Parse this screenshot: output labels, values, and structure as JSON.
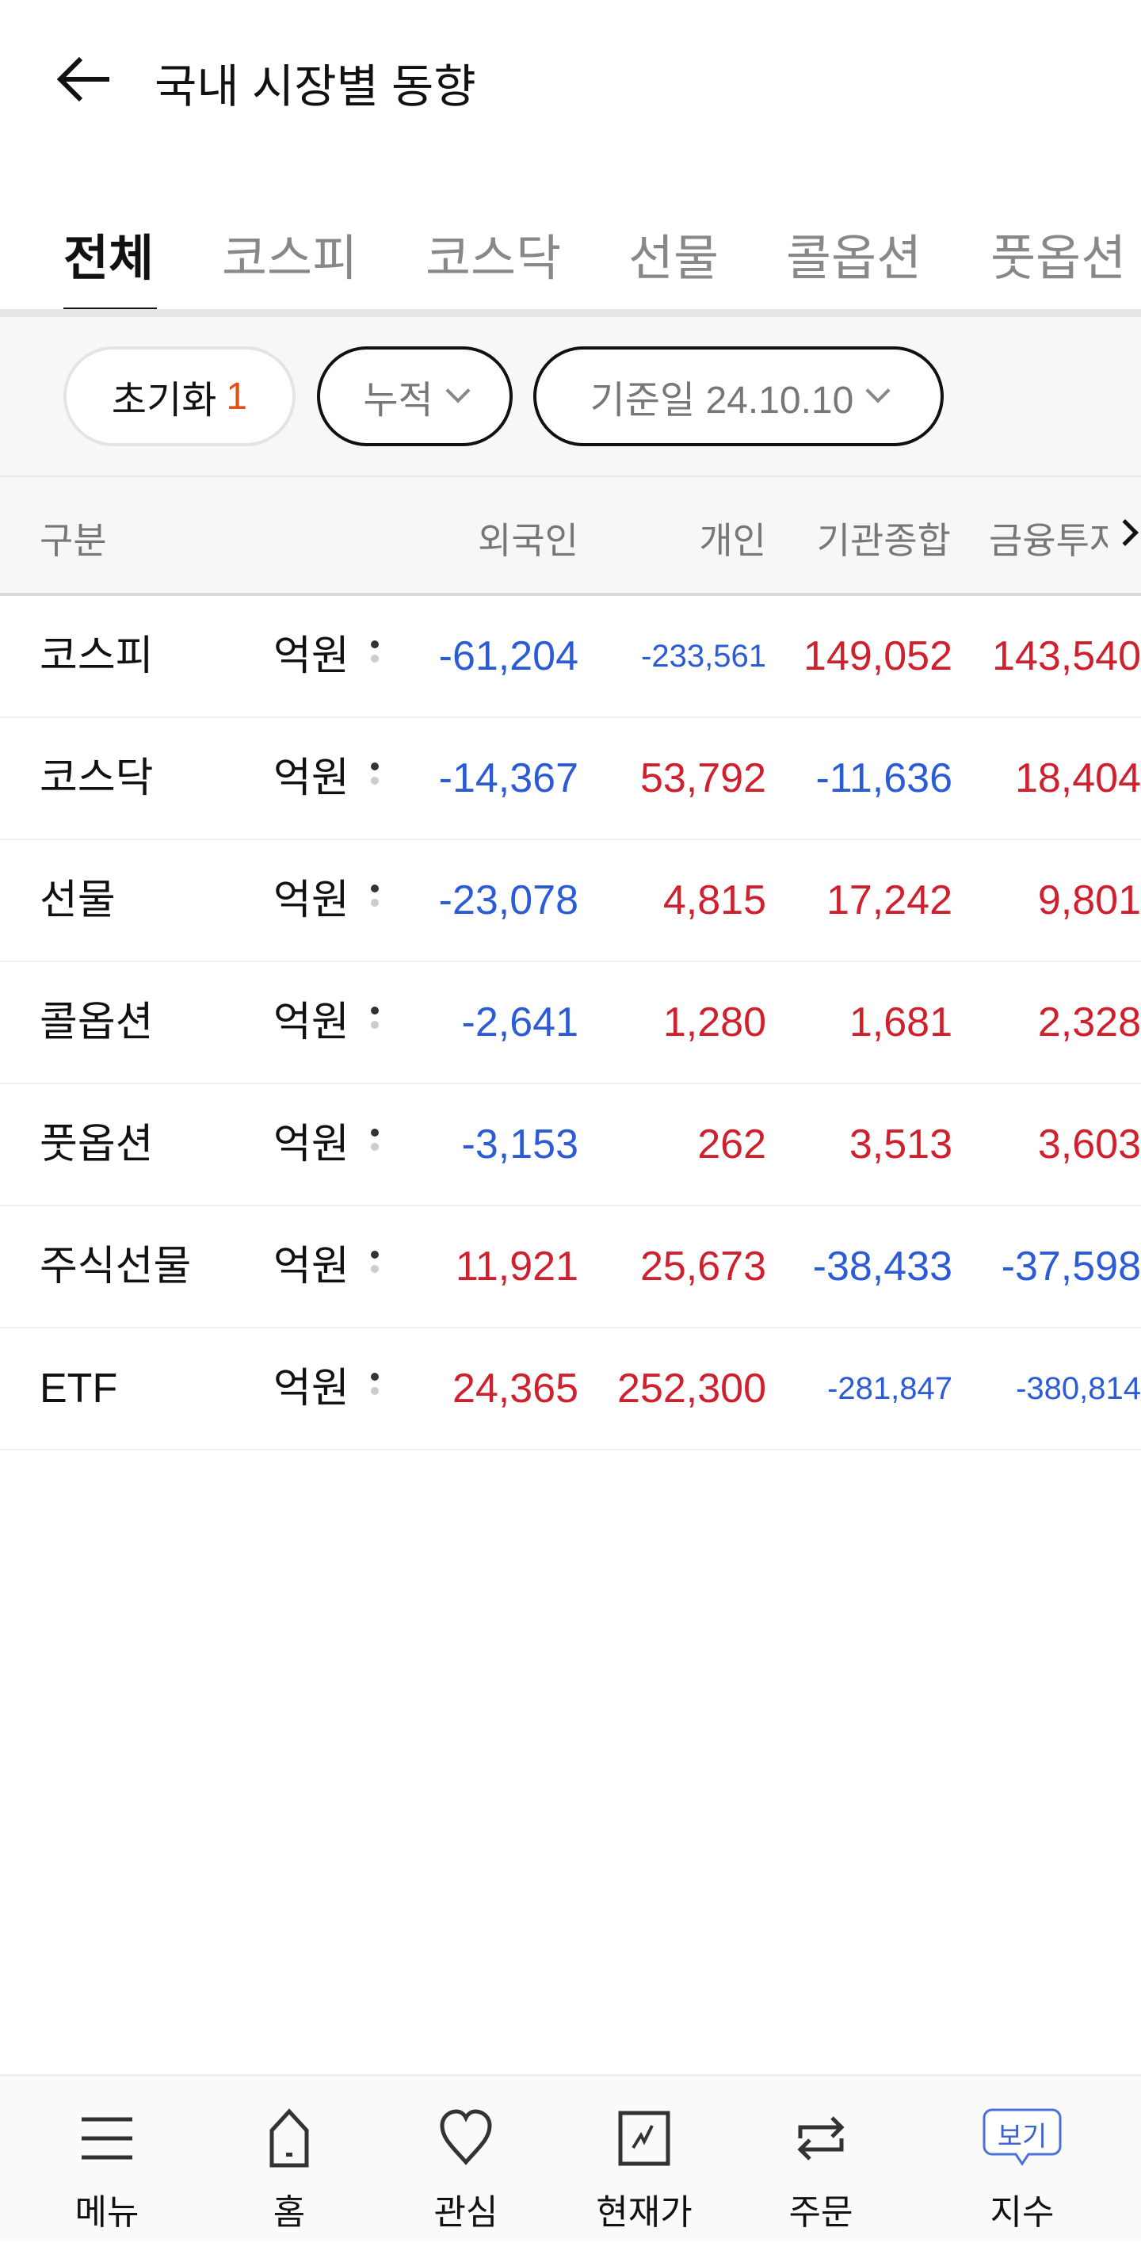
{
  "header": {
    "title": "국내 시장별 동향",
    "back_icon": "arrow-left-icon"
  },
  "tabs": [
    {
      "label": "전체",
      "active": true
    },
    {
      "label": "코스피"
    },
    {
      "label": "코스닥"
    },
    {
      "label": "선물"
    },
    {
      "label": "콜옵션"
    },
    {
      "label": "풋옵션"
    }
  ],
  "filters": {
    "reset_label": "초기화",
    "reset_count": "1",
    "mode_label": "누적",
    "date_label": "기준일 24.10.10"
  },
  "table": {
    "columns": [
      "구분",
      "외국인",
      "개인",
      "기관종합",
      "금융투자"
    ],
    "rows": [
      {
        "label": "코스피",
        "unit": "억원",
        "values": [
          "-61,204",
          "-233,561",
          "149,052",
          "143,540"
        ]
      },
      {
        "label": "코스닥",
        "unit": "억원",
        "values": [
          "-14,367",
          "53,792",
          "-11,636",
          "18,404"
        ]
      },
      {
        "label": "선물",
        "unit": "억원",
        "values": [
          "-23,078",
          "4,815",
          "17,242",
          "9,801"
        ]
      },
      {
        "label": "콜옵션",
        "unit": "억원",
        "values": [
          "-2,641",
          "1,280",
          "1,681",
          "2,328"
        ]
      },
      {
        "label": "풋옵션",
        "unit": "억원",
        "values": [
          "-3,153",
          "262",
          "3,513",
          "3,603"
        ]
      },
      {
        "label": "주식선물",
        "unit": "억원",
        "values": [
          "11,921",
          "25,673",
          "-38,433",
          "-37,598"
        ]
      },
      {
        "label": "ETF",
        "unit": "억원",
        "values": [
          "24,365",
          "252,300",
          "-281,847",
          "-380,814"
        ]
      }
    ]
  },
  "colors": {
    "negative": "#2b5bd7",
    "positive": "#d0202e",
    "accent": "#e0501a"
  },
  "bottom_nav": [
    {
      "label": "메뉴",
      "icon": "menu-icon"
    },
    {
      "label": "홈",
      "icon": "home-icon"
    },
    {
      "label": "관심",
      "icon": "heart-icon"
    },
    {
      "label": "현재가",
      "icon": "chart-icon"
    },
    {
      "label": "주문",
      "icon": "swap-icon"
    },
    {
      "label": "지수",
      "icon": "speech-bubble-icon",
      "badge": "보기"
    }
  ]
}
